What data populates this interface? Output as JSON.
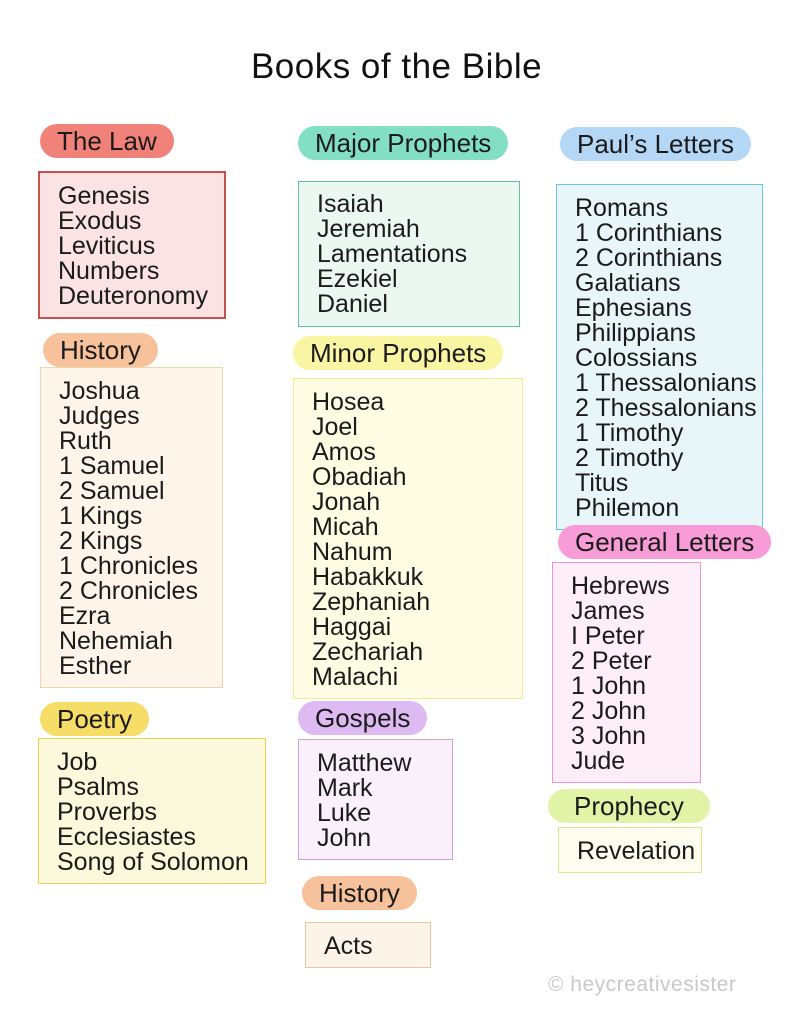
{
  "title": "Books of the Bible",
  "watermark": "© heycreativesister",
  "colors": {
    "text": "#1b1b1b",
    "watermark": "#c9c8ce"
  },
  "groups": {
    "law": {
      "label": "The Law",
      "pill": "#F1827A",
      "box_bg": "#FBE2E3",
      "box_border": "#C5524E",
      "books": [
        "Genesis",
        "Exodus",
        "Leviticus",
        "Numbers",
        "Deuteronomy"
      ]
    },
    "history": {
      "label": "History",
      "pill": "#F7C29B",
      "box_bg": "#FDF5EA",
      "box_border": "#EBD7A9",
      "books": [
        "Joshua",
        "Judges",
        "Ruth",
        "1 Samuel",
        "2 Samuel",
        "1 Kings",
        "2 Kings",
        "1 Chronicles",
        "2 Chronicles",
        "Ezra",
        "Nehemiah",
        "Esther"
      ]
    },
    "poetry": {
      "label": "Poetry",
      "pill": "#F5DD68",
      "box_bg": "#FCF8DB",
      "box_border": "#E6D44E",
      "books": [
        "Job",
        "Psalms",
        "Proverbs",
        "Ecclesiastes",
        "Song of Solomon"
      ]
    },
    "major_prophets": {
      "label": "Major Prophets",
      "pill": "#82DFC4",
      "box_bg": "#EBF7F1",
      "box_border": "#63BF9D",
      "books": [
        "Isaiah",
        "Jeremiah",
        "Lamentations",
        "Ezekiel",
        "Daniel"
      ]
    },
    "minor_prophets": {
      "label": "Minor Prophets",
      "pill": "#FAF5A3",
      "box_bg": "#FEFDE4",
      "box_border": "#F0ED8C",
      "books": [
        "Hosea",
        "Joel",
        "Amos",
        "Obadiah",
        "Jonah",
        "Micah",
        "Nahum",
        "Habakkuk",
        "Zephaniah",
        "Haggai",
        "Zechariah",
        "Malachi"
      ]
    },
    "gospels": {
      "label": "Gospels",
      "pill": "#DDBAF1",
      "box_bg": "#F9F0FC",
      "box_border": "#C9A2DF",
      "books": [
        "Matthew",
        "Mark",
        "Luke",
        "John"
      ]
    },
    "acts_history": {
      "label": "History",
      "pill": "#F7C29B",
      "box_bg": "#FCF4E8",
      "box_border": "#E2CB9D",
      "books": [
        "Acts"
      ]
    },
    "pauls_letters": {
      "label": "Paul’s Letters",
      "pill": "#B5D7F6",
      "box_bg": "#E8F5F9",
      "box_border": "#66CBD4",
      "books": [
        "Romans",
        "1 Corinthians",
        "2 Corinthians",
        "Galatians",
        "Ephesians",
        "Philippians",
        "Colossians",
        "1 Thessalonians",
        "2 Thessalonians",
        "1 Timothy",
        "2 Timothy",
        "Titus",
        "Philemon"
      ]
    },
    "general_letters": {
      "label": "General Letters",
      "pill": "#F79CD6",
      "box_bg": "#FDEEF8",
      "box_border": "#EE96CF",
      "books": [
        "Hebrews",
        "James",
        "I Peter",
        "2 Peter",
        "1 John",
        "2 John",
        "3 John",
        "Jude"
      ]
    },
    "prophecy": {
      "label": "Prophecy",
      "pill": "#E2F3A8",
      "box_bg": "#FCFDEF",
      "box_border": "#DCE88D",
      "books": [
        "Revelation"
      ]
    }
  }
}
